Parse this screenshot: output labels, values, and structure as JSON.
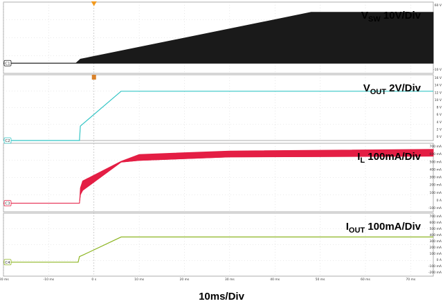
{
  "chart_data": {
    "type": "line",
    "time_axis": {
      "unit": "ms",
      "range": [
        -20,
        75
      ],
      "ticks": [
        -20,
        -10,
        0,
        10,
        20,
        30,
        40,
        50,
        60,
        70
      ],
      "tick_labels": [
        "-20 ms",
        "-10 ms",
        "0 s",
        "10 ms",
        "20 ms",
        "30 ms",
        "40 ms",
        "50 ms",
        "60 ms",
        "70 ms"
      ],
      "caption": "10ms/Div"
    },
    "trigger_time": 0,
    "channels": [
      {
        "id": "C1",
        "color": "#1a1a1a",
        "label_main": "V",
        "label_sub": "SW",
        "label_rest": " 10V/Div",
        "unit": "V",
        "ylim": [
          -10,
          60
        ],
        "scale_labels": [
          "60 V",
          "-10 V"
        ],
        "style": "envelope",
        "envelope_lower": [
          [
            -20,
            0
          ],
          [
            -4,
            0
          ],
          [
            -3,
            0
          ],
          [
            48,
            0
          ],
          [
            75,
            0
          ]
        ],
        "envelope_upper": [
          [
            -20,
            0
          ],
          [
            -4,
            0
          ],
          [
            -3,
            4
          ],
          [
            48,
            50
          ],
          [
            75,
            50
          ]
        ]
      },
      {
        "id": "C2",
        "color": "#33c5c5",
        "label_main": "V",
        "label_sub": "OUT",
        "label_rest": " 2V/Div",
        "unit": "V",
        "ylim": [
          0,
          16
        ],
        "scale_labels": [
          "16 V",
          "14 V",
          "12 V",
          "10 V",
          "8 V",
          "6 V",
          "4 V",
          "2 V",
          "0 V"
        ],
        "style": "line",
        "points": [
          [
            -20,
            0
          ],
          [
            -3.2,
            0
          ],
          [
            -3.0,
            3.5
          ],
          [
            -2.5,
            4
          ],
          [
            6,
            12
          ],
          [
            75,
            12
          ]
        ]
      },
      {
        "id": "C3",
        "color": "#e41e44",
        "label_main": "I",
        "label_sub": "L",
        "label_rest": " 100mA/Div",
        "unit": "mA",
        "ylim": [
          -100,
          700
        ],
        "scale_labels": [
          "700 mA",
          "600 mA",
          "500 mA",
          "400 mA",
          "300 mA",
          "200 mA",
          "100 mA",
          "0 A",
          "-100 mA"
        ],
        "style": "envelope",
        "envelope_lower": [
          [
            -20,
            0
          ],
          [
            -3.2,
            0
          ],
          [
            -3,
            100
          ],
          [
            -2.5,
            150
          ],
          [
            6,
            480
          ],
          [
            10,
            500
          ],
          [
            30,
            540
          ],
          [
            75,
            550
          ]
        ],
        "envelope_upper": [
          [
            -20,
            0
          ],
          [
            -3.2,
            0
          ],
          [
            -3,
            180
          ],
          [
            -2.5,
            260
          ],
          [
            6,
            490
          ],
          [
            10,
            570
          ],
          [
            30,
            610
          ],
          [
            75,
            630
          ]
        ]
      },
      {
        "id": "C4",
        "color": "#8db522",
        "label_main": "I",
        "label_sub": "OUT",
        "label_rest": " 100mA/Div",
        "unit": "mA",
        "ylim": [
          -200,
          700
        ],
        "scale_labels": [
          "700 mA",
          "600 mA",
          "500 mA",
          "400 mA",
          "300 mA",
          "200 mA",
          "100 mA",
          "0 A",
          "-100 mA",
          "-200 mA"
        ],
        "style": "line",
        "points": [
          [
            -20,
            0
          ],
          [
            -3.5,
            0
          ],
          [
            -3.2,
            80
          ],
          [
            -2.5,
            100
          ],
          [
            6,
            360
          ],
          [
            75,
            360
          ]
        ]
      }
    ]
  }
}
